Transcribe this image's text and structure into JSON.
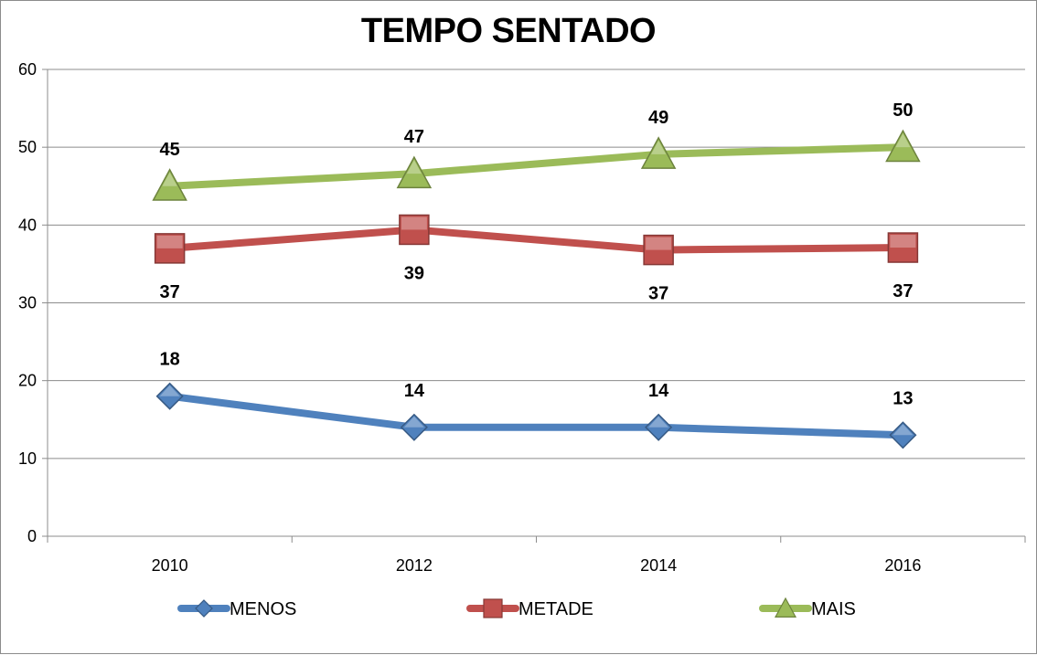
{
  "chart_data": {
    "type": "line",
    "title": "TEMPO SENTADO",
    "xlabel": "",
    "ylabel": "",
    "categories": [
      "2010",
      "2012",
      "2014",
      "2016"
    ],
    "ylim": [
      0,
      60
    ],
    "yticks": [
      "0",
      "10",
      "20",
      "30",
      "40",
      "50",
      "60"
    ],
    "grid": true,
    "legend_position": "bottom",
    "series": [
      {
        "name": "MENOS",
        "values": [
          18,
          14,
          14,
          13
        ],
        "labels": [
          "18",
          "14",
          "14",
          "13"
        ],
        "color": "#4f81bd",
        "marker": "diamond",
        "label_position": "above"
      },
      {
        "name": "METADE",
        "values": [
          37,
          39.4,
          36.8,
          37.1
        ],
        "labels": [
          "37",
          "39",
          "37",
          "37"
        ],
        "color": "#c0504d",
        "marker": "square",
        "label_position": "below"
      },
      {
        "name": "MAIS",
        "values": [
          45,
          46.6,
          49.1,
          50
        ],
        "labels": [
          "45",
          "47",
          "49",
          "50"
        ],
        "color": "#9bbb59",
        "marker": "triangle",
        "label_position": "above"
      }
    ]
  }
}
